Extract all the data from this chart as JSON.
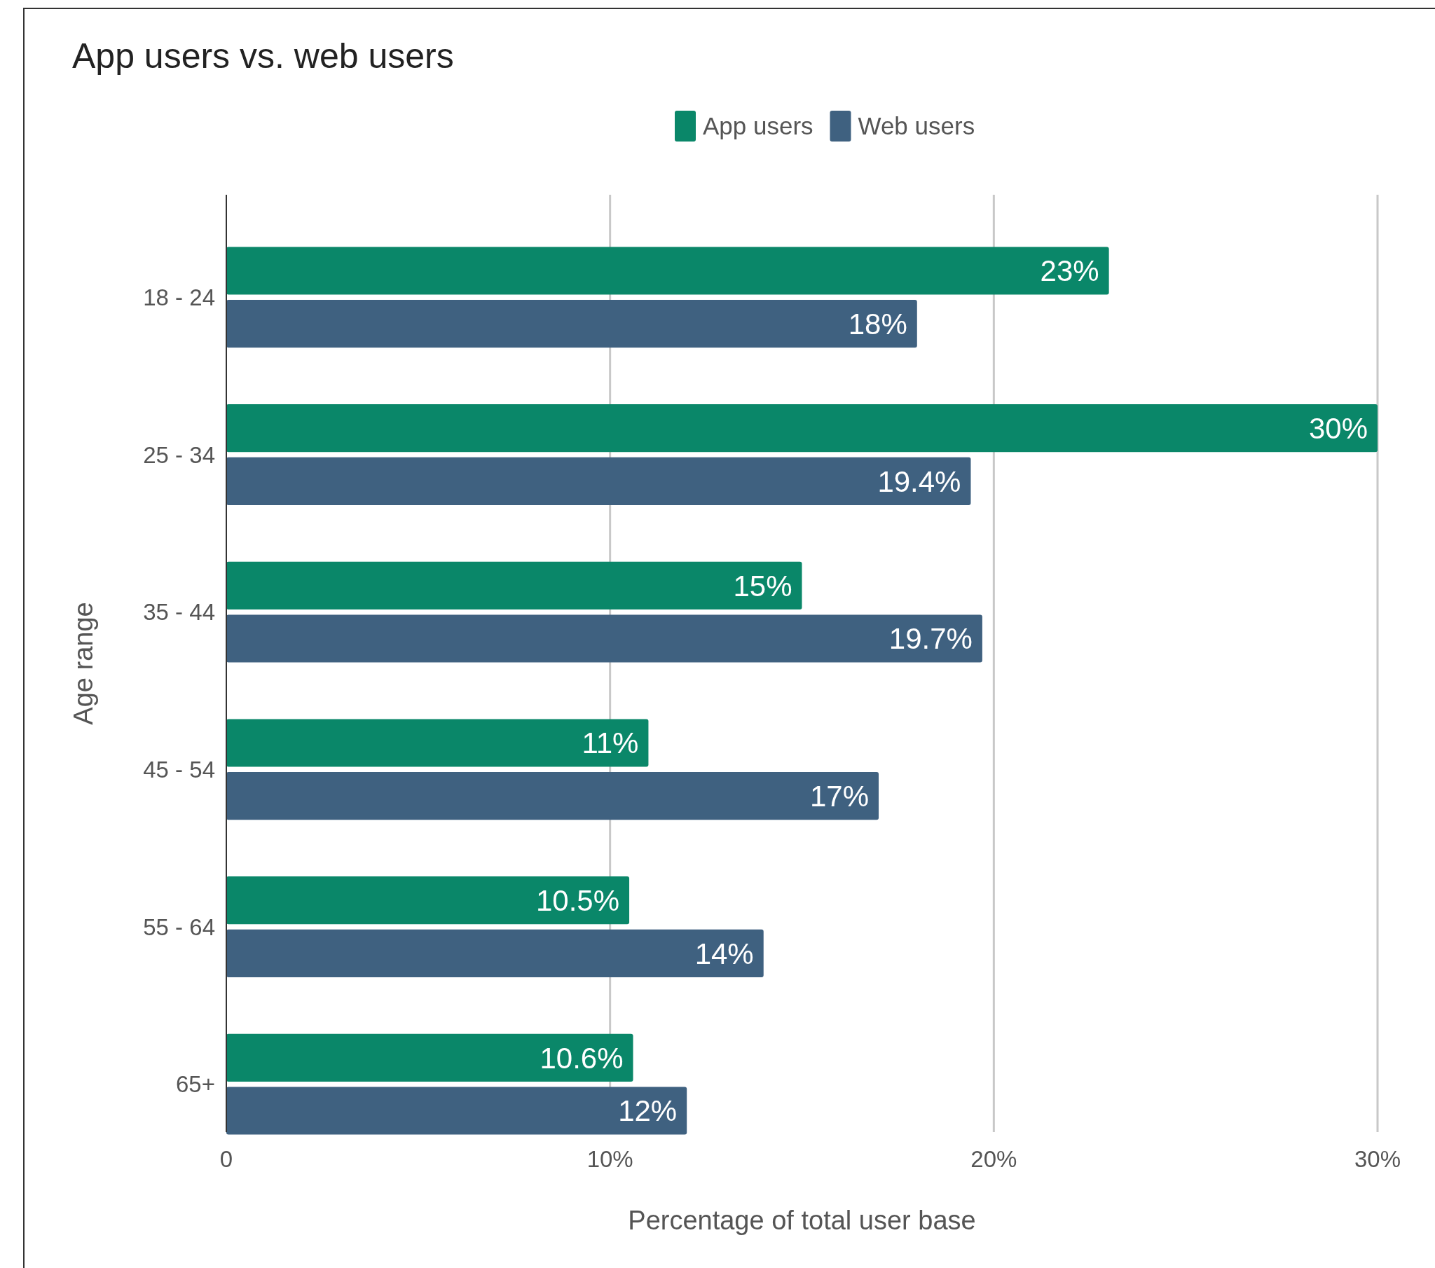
{
  "chart_data": {
    "type": "bar",
    "orientation": "horizontal",
    "title": "App users vs. web users",
    "xlabel": "Percentage of total user base",
    "ylabel": "Age range",
    "categories": [
      "18 - 24",
      "25 - 34",
      "35 - 44",
      "45 - 54",
      "55 - 64",
      "65+"
    ],
    "series": [
      {
        "name": "App users",
        "color": "#0a8769",
        "values": [
          23,
          30,
          15,
          11,
          10.5,
          10.6
        ],
        "value_labels": [
          "23%",
          "30%",
          "15%",
          "11%",
          "10.5%",
          "10.6%"
        ]
      },
      {
        "name": "Web users",
        "color": "#3f6180",
        "values": [
          18,
          19.4,
          19.7,
          17,
          14,
          12
        ],
        "value_labels": [
          "18%",
          "19.4%",
          "19.7%",
          "17%",
          "14%",
          "12%"
        ]
      }
    ],
    "xlim": [
      0,
      30
    ],
    "xticks": [
      0,
      {
        "value": 10,
        "label": "10%"
      },
      {
        "value": 20,
        "label": "20%"
      },
      {
        "value": 30,
        "label": "30%"
      }
    ],
    "grid": "x",
    "legend": "top"
  }
}
